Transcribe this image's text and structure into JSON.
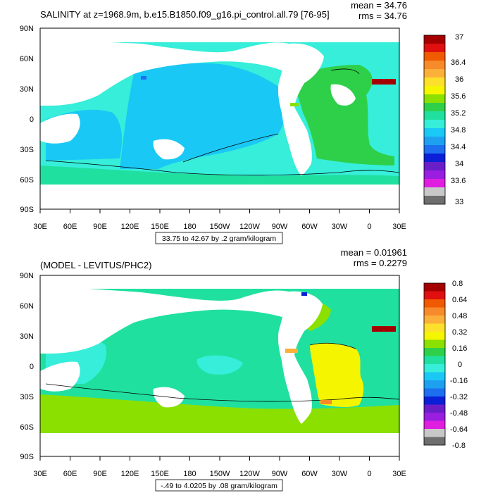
{
  "panels": [
    {
      "title": "SALINITY at z=1968.9m, b.e15.B1850.f09_g16.pi_control.all.79 [76-95]",
      "mean_label": "mean = 34.76",
      "rms_label": "rms = 34.76",
      "range_caption": "33.75 to 42.67 by .2 gram/kilogram",
      "lat_ticks": [
        "90N",
        "60N",
        "30N",
        "0",
        "30S",
        "60S",
        "90S"
      ],
      "lon_ticks": [
        "30E",
        "60E",
        "90E",
        "120E",
        "150E",
        "180",
        "150W",
        "120W",
        "90W",
        "60W",
        "30W",
        "0",
        "30E"
      ],
      "colorbar": {
        "labels": [
          "37",
          "36.4",
          "36",
          "35.6",
          "35.2",
          "34.8",
          "34.4",
          "34",
          "33.6",
          "33"
        ],
        "colors": [
          "#a50000",
          "#e01010",
          "#f05a00",
          "#f78a2a",
          "#fbb03a",
          "#fde02c",
          "#f5f500",
          "#8be000",
          "#2ed04a",
          "#20e0a0",
          "#36eed9",
          "#1ac8f5",
          "#1ea0f0",
          "#1e6ef0",
          "#0a1fd6",
          "#6a1ec8",
          "#9a1ee0",
          "#e01ee0",
          "#c8c8c8",
          "#6e6e6e"
        ]
      }
    },
    {
      "title": "(MODEL - LEVITUS/PHC2)",
      "mean_label": "mean = 0.01961",
      "rms_label": "rms = 0.2279",
      "range_caption": "-.49 to 4.0205 by .08 gram/kilogram",
      "lat_ticks": [
        "90N",
        "60N",
        "30N",
        "0",
        "30S",
        "60S",
        "90S"
      ],
      "lon_ticks": [
        "30E",
        "60E",
        "90E",
        "120E",
        "150E",
        "180",
        "150W",
        "120W",
        "90W",
        "60W",
        "30W",
        "0",
        "30E"
      ],
      "colorbar": {
        "labels": [
          "0.8",
          "0.64",
          "0.48",
          "0.32",
          "0.16",
          "0",
          "-0.16",
          "-0.32",
          "-0.48",
          "-0.64",
          "-0.8"
        ],
        "colors": [
          "#a50000",
          "#e01010",
          "#f05a00",
          "#f78a2a",
          "#fbb03a",
          "#fde02c",
          "#f5f500",
          "#8be000",
          "#2ed04a",
          "#20e0a0",
          "#36eed9",
          "#1ac8f5",
          "#1ea0f0",
          "#1e6ef0",
          "#0a1fd6",
          "#6a1ec8",
          "#9a1ee0",
          "#e01ee0",
          "#c8c8c8",
          "#6e6e6e"
        ]
      }
    }
  ]
}
